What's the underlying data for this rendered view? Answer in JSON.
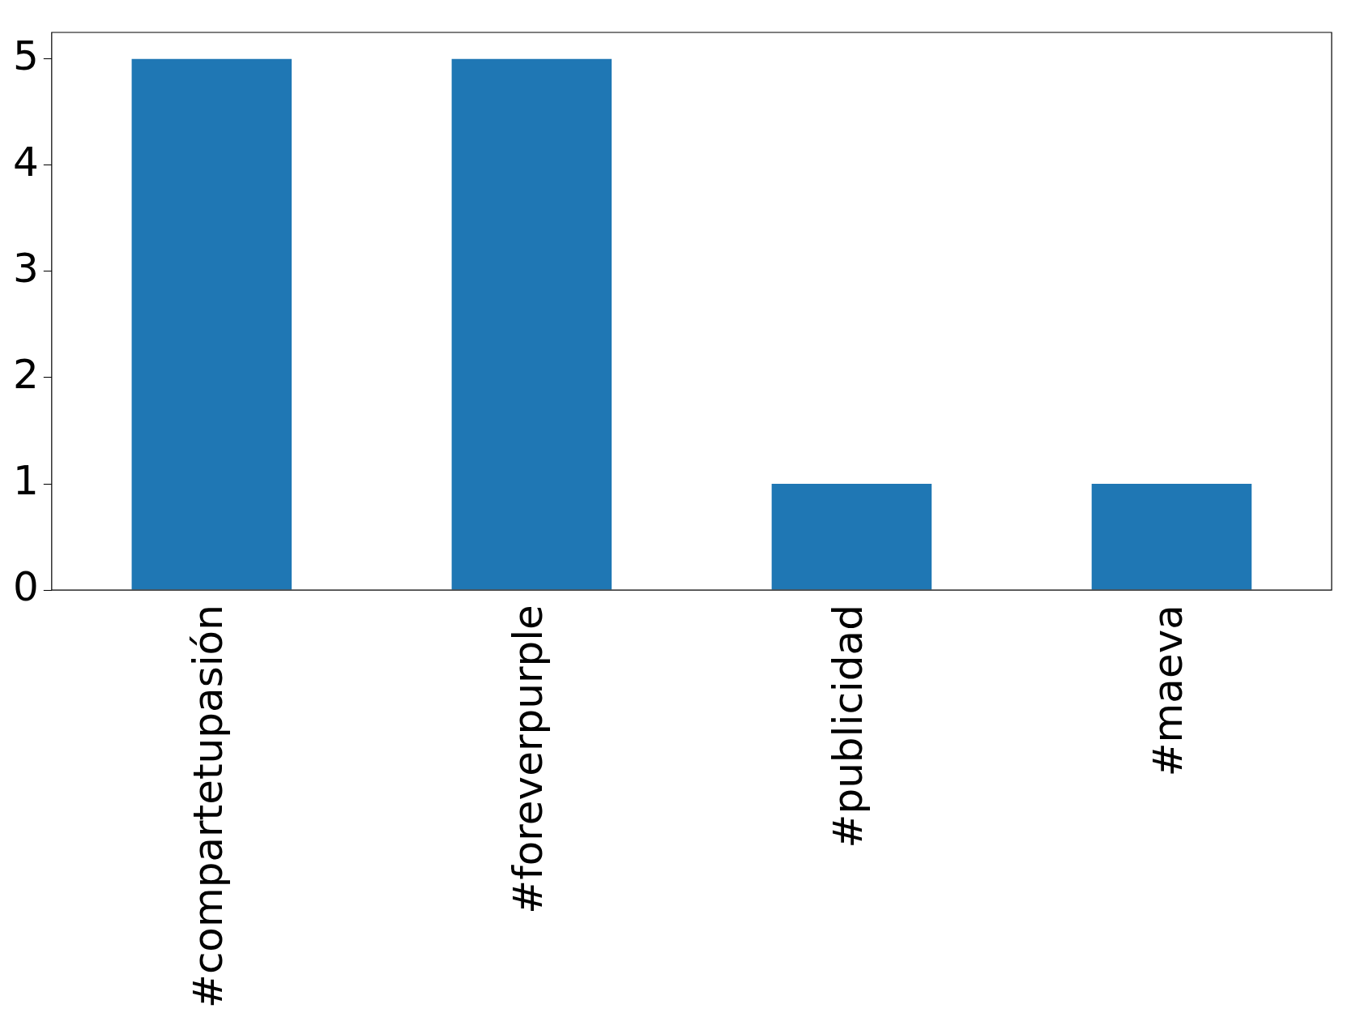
{
  "chart_data": {
    "type": "bar",
    "categories": [
      "#compartetupasión",
      "#foreverpurple",
      "#publicidad",
      "#maeva"
    ],
    "values": [
      5,
      5,
      1,
      1
    ],
    "color": "#1f77b4",
    "ylim": [
      0,
      5.25
    ],
    "yticks": [
      0,
      1,
      2,
      3,
      4,
      5
    ],
    "grid": false,
    "legend": false
  }
}
